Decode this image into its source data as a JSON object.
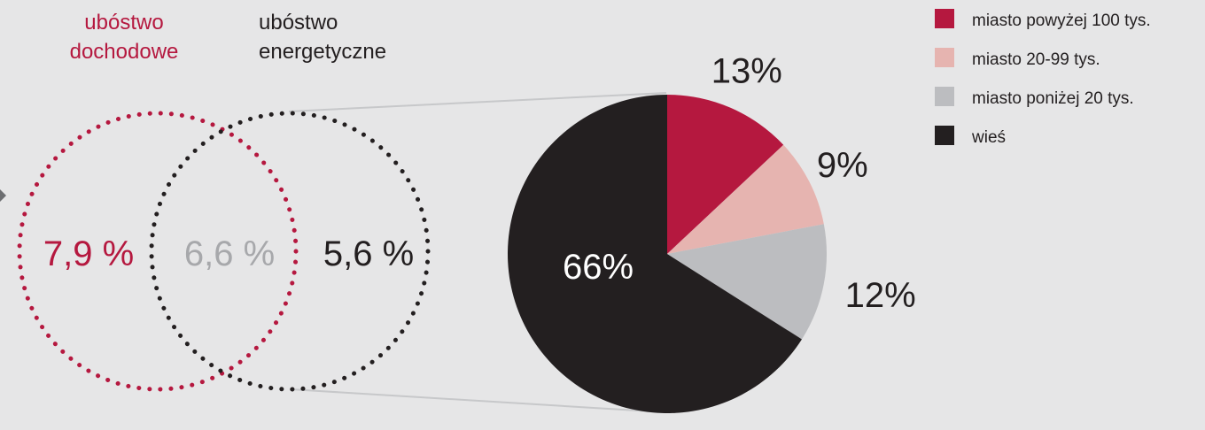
{
  "venn": {
    "left_title_line1": "ubóstwo",
    "left_title_line2": "dochodowe",
    "right_title_line1": "ubóstwo",
    "right_title_line2": "energetyczne",
    "left_only_value": "7,9 %",
    "overlap_value": "6,6 %",
    "right_only_value": "5,6 %",
    "left_color": "#b5183f",
    "right_color": "#231f20",
    "overlap_text_color": "#a7a8ab"
  },
  "chart_data": {
    "type": "pie",
    "labels": [
      "miasto powyżej 100 tys.",
      "miasto 20-99 tys.",
      "miasto poniżej 20 tys.",
      "wieś"
    ],
    "values": [
      13,
      9,
      12,
      66
    ],
    "value_labels": [
      "13%",
      "9%",
      "12%",
      "66%"
    ],
    "colors": [
      "#b5183f",
      "#e6b4b0",
      "#bcbdc0",
      "#231f20"
    ],
    "legend_position": "top-right",
    "start_angle_deg": 0,
    "direction": "clockwise"
  }
}
